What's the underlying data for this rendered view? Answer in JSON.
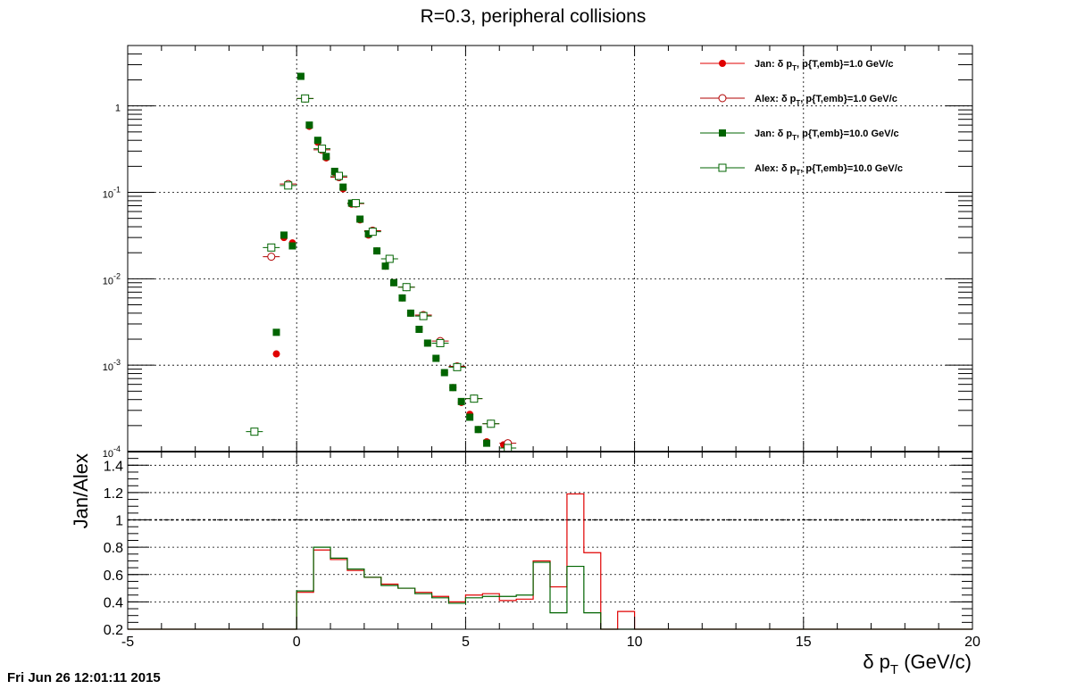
{
  "colors": {
    "jan_1": "#e00000",
    "alex_1": "#b00000",
    "jan_10": "#006400",
    "alex_10": "#006400",
    "grid": "#000000",
    "reference_line": "#000000"
  },
  "timestamp": "Fri Jun 26 12:01:11 2015",
  "chart_data": [
    {
      "type": "scatter",
      "title": "R=0.3, peripheral collisions",
      "xlabel": "",
      "ylabel": "",
      "xlim": [
        -5,
        20
      ],
      "ylim": [
        0.0001,
        5
      ],
      "yscale": "log",
      "grid": true,
      "legend_position": "top-right",
      "y_tick_labels": [
        {
          "value": 1,
          "base": "1",
          "exp": ""
        },
        {
          "value": 0.1,
          "base": "10",
          "exp": "-1"
        },
        {
          "value": 0.01,
          "base": "10",
          "exp": "-2"
        },
        {
          "value": 0.001,
          "base": "10",
          "exp": "-3"
        },
        {
          "value": 0.0001,
          "base": "10",
          "exp": "-4"
        }
      ],
      "series": [
        {
          "name": "Jan: δ p_T, p{T,emb}=1.0 GeV/c",
          "legend_label": {
            "pre": "Jan: δ p",
            "sub": "T",
            "post": ", p{T,emb}=1.0 GeV/c"
          },
          "marker": "filled-circle",
          "color": "#e00000",
          "xerr": 0,
          "x": [
            -0.6,
            -0.375,
            -0.125,
            0.125,
            0.375,
            0.625,
            0.875,
            1.125,
            1.375,
            1.625,
            1.875,
            2.125,
            2.375,
            2.625,
            2.875,
            3.125,
            3.375,
            3.625,
            3.875,
            4.125,
            4.375,
            4.625,
            4.875,
            5.125,
            5.375,
            5.625,
            6.125
          ],
          "y": [
            0.00135,
            0.03,
            0.026,
            2.2,
            0.58,
            0.38,
            0.25,
            0.17,
            0.11,
            0.073,
            0.048,
            0.032,
            0.021,
            0.014,
            0.009,
            0.006,
            0.004,
            0.0026,
            0.0018,
            0.0012,
            0.00082,
            0.00055,
            0.00037,
            0.00027,
            0.00018,
            0.00013,
            0.00012
          ]
        },
        {
          "name": "Alex: δ p_T, p{T,emb}=1.0 GeV/c",
          "legend_label": {
            "pre": "Alex: δ p",
            "sub": "T",
            "post": ", p{T,emb}=1.0 GeV/c"
          },
          "marker": "open-circle",
          "color": "#b00000",
          "xerr": 0.25,
          "x": [
            -0.75,
            -0.25,
            0.25,
            0.75,
            1.25,
            1.75,
            2.25,
            2.75,
            3.25,
            3.75,
            4.25,
            4.75,
            5.25,
            5.75,
            6.25
          ],
          "y": [
            0.018,
            0.125,
            1.22,
            0.31,
            0.15,
            0.074,
            0.036,
            0.017,
            0.008,
            0.0038,
            0.0019,
            0.00097,
            0.00041,
            0.00021,
            0.000125
          ]
        },
        {
          "name": "Jan: δ p_T, p{T,emb}=10.0 GeV/c",
          "legend_label": {
            "pre": "Jan: δ p",
            "sub": "T",
            "post": ", p{T,emb}=10.0 GeV/c"
          },
          "marker": "filled-square",
          "color": "#006400",
          "xerr": 0,
          "x": [
            -0.6,
            -0.375,
            -0.125,
            0.125,
            0.375,
            0.625,
            0.875,
            1.125,
            1.375,
            1.625,
            1.875,
            2.125,
            2.375,
            2.625,
            2.875,
            3.125,
            3.375,
            3.625,
            3.875,
            4.125,
            4.375,
            4.625,
            4.875,
            5.125,
            5.375,
            5.625
          ],
          "y": [
            0.0024,
            0.032,
            0.024,
            2.2,
            0.6,
            0.4,
            0.26,
            0.175,
            0.115,
            0.075,
            0.049,
            0.033,
            0.021,
            0.014,
            0.009,
            0.006,
            0.004,
            0.0026,
            0.0018,
            0.0012,
            0.00082,
            0.00055,
            0.00038,
            0.00025,
            0.00018,
            0.000125
          ]
        },
        {
          "name": "Alex: δ p_T, p{T,emb}=10.0 GeV/c",
          "legend_label": {
            "pre": "Alex: δ p",
            "sub": "T",
            "post": ", p{T,emb}=10.0 GeV/c"
          },
          "marker": "open-square",
          "color": "#006400",
          "xerr": 0.25,
          "x": [
            -1.25,
            -0.75,
            -0.25,
            0.25,
            0.75,
            1.25,
            1.75,
            2.25,
            2.75,
            3.25,
            3.75,
            4.25,
            4.75,
            5.25,
            5.75,
            6.25
          ],
          "y": [
            0.00017,
            0.023,
            0.12,
            1.22,
            0.32,
            0.155,
            0.075,
            0.035,
            0.017,
            0.008,
            0.0037,
            0.0018,
            0.00095,
            0.00041,
            0.00021,
            0.00011
          ]
        }
      ]
    },
    {
      "type": "line",
      "step": true,
      "xlabel": "δ p_T (GeV/c)",
      "xlabel_parts": {
        "pre": "δ p",
        "sub": "T",
        "post": " (GeV/c)"
      },
      "ylabel": "Jan/Alex",
      "xlim": [
        -5,
        20
      ],
      "ylim": [
        0.2,
        1.5
      ],
      "grid": true,
      "reference_line": 1,
      "x_ticks": [
        -5,
        0,
        5,
        10,
        15,
        20
      ],
      "y_ticks": [
        0.2,
        0.4,
        0.6,
        0.8,
        1,
        1.2,
        1.4
      ],
      "bin_edges": [
        -5,
        -0.5,
        0,
        0.5,
        1,
        1.5,
        2,
        2.5,
        3,
        3.5,
        4,
        4.5,
        5,
        5.5,
        6,
        6.5,
        7,
        7.5,
        8,
        8.5,
        9,
        9.5,
        10,
        20
      ],
      "series": [
        {
          "name": "1.0 GeV/c",
          "color": "#e00000",
          "values": [
            0.2,
            0.2,
            0.47,
            0.78,
            0.71,
            0.63,
            0.58,
            0.53,
            0.5,
            0.47,
            0.44,
            0.4,
            0.45,
            0.46,
            0.41,
            0.42,
            0.7,
            0.51,
            1.19,
            0.76,
            0.2,
            0.33,
            0.2
          ]
        },
        {
          "name": "10.0 GeV/c",
          "color": "#006400",
          "values": [
            0.2,
            0.2,
            0.48,
            0.8,
            0.72,
            0.64,
            0.58,
            0.52,
            0.5,
            0.46,
            0.43,
            0.39,
            0.43,
            0.44,
            0.44,
            0.45,
            0.69,
            0.32,
            0.66,
            0.32,
            0.2,
            0.2,
            0.2
          ]
        }
      ]
    }
  ]
}
